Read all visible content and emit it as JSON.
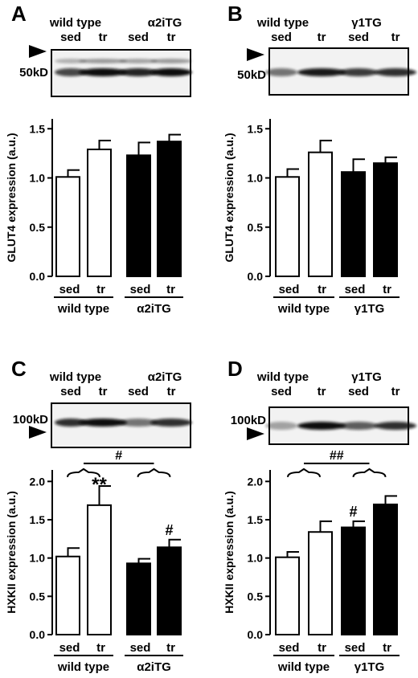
{
  "chart_data": [
    {
      "panel": "A",
      "type": "bar",
      "ylabel": "GLUT4 expression (a.u.)",
      "ylim": [
        0,
        1.6
      ],
      "yticks": [
        "0.0",
        "0.5",
        "1.0",
        "1.5"
      ],
      "ytick_values": [
        0,
        0.5,
        1.0,
        1.5
      ],
      "categories": [
        "sed",
        "tr",
        "sed",
        "tr"
      ],
      "groups": [
        "wild type",
        "α2iTG"
      ],
      "values": [
        1.01,
        1.29,
        1.23,
        1.37
      ],
      "errors": [
        0.07,
        0.09,
        0.13,
        0.07
      ],
      "fill": [
        "#ffffff",
        "#ffffff",
        "#000000",
        "#000000"
      ],
      "blot": {
        "header_groups": [
          "wild type",
          "α2iTG"
        ],
        "header_lanes": [
          "sed",
          "tr",
          "sed",
          "tr"
        ],
        "marker": "50kD"
      },
      "annotations": []
    },
    {
      "panel": "B",
      "type": "bar",
      "ylabel": "GLUT4 expression (a.u.)",
      "ylim": [
        0,
        1.6
      ],
      "yticks": [
        "0.0",
        "0.5",
        "1.0",
        "1.5"
      ],
      "ytick_values": [
        0,
        0.5,
        1.0,
        1.5
      ],
      "categories": [
        "sed",
        "tr",
        "sed",
        "tr"
      ],
      "groups": [
        "wild type",
        "γ1TG"
      ],
      "values": [
        1.01,
        1.26,
        1.06,
        1.15
      ],
      "errors": [
        0.08,
        0.12,
        0.13,
        0.06
      ],
      "fill": [
        "#ffffff",
        "#ffffff",
        "#000000",
        "#000000"
      ],
      "blot": {
        "header_groups": [
          "wild type",
          "γ1TG"
        ],
        "header_lanes": [
          "sed",
          "tr",
          "sed",
          "tr"
        ],
        "marker": "50kD"
      },
      "annotations": []
    },
    {
      "panel": "C",
      "type": "bar",
      "ylabel": "HXKII expression (a.u.)",
      "ylim": [
        0,
        2.15
      ],
      "yticks": [
        "0.0",
        "0.5",
        "1.0",
        "1.5",
        "2.0"
      ],
      "ytick_values": [
        0,
        0.5,
        1.0,
        1.5,
        2.0
      ],
      "categories": [
        "sed",
        "tr",
        "sed",
        "tr"
      ],
      "groups": [
        "wild type",
        "α2iTG"
      ],
      "values": [
        1.02,
        1.69,
        0.93,
        1.14
      ],
      "errors": [
        0.11,
        0.25,
        0.06,
        0.1
      ],
      "fill": [
        "#ffffff",
        "#ffffff",
        "#000000",
        "#000000"
      ],
      "blot": {
        "header_groups": [
          "wild type",
          "α2iTG"
        ],
        "header_lanes": [
          "sed",
          "tr",
          "sed",
          "tr"
        ],
        "marker": "100kD"
      },
      "annotations": [
        {
          "bar": 1,
          "text": "**"
        },
        {
          "bar": 3,
          "text": "#"
        }
      ],
      "group_annotation": "#"
    },
    {
      "panel": "D",
      "type": "bar",
      "ylabel": "HXKII expression (a.u.)",
      "ylim": [
        0,
        2.15
      ],
      "yticks": [
        "0.0",
        "0.5",
        "1.0",
        "1.5",
        "2.0"
      ],
      "ytick_values": [
        0,
        0.5,
        1.0,
        1.5,
        2.0
      ],
      "categories": [
        "sed",
        "tr",
        "sed",
        "tr"
      ],
      "groups": [
        "wild type",
        "γ1TG"
      ],
      "values": [
        1.01,
        1.34,
        1.4,
        1.7
      ],
      "errors": [
        0.07,
        0.14,
        0.08,
        0.11
      ],
      "fill": [
        "#ffffff",
        "#ffffff",
        "#000000",
        "#000000"
      ],
      "blot": {
        "header_groups": [
          "wild type",
          "γ1TG"
        ],
        "header_lanes": [
          "sed",
          "tr",
          "sed",
          "tr"
        ],
        "marker": "100kD"
      },
      "annotations": [
        {
          "bar": 2,
          "text": "#"
        }
      ],
      "group_annotation": "##"
    }
  ]
}
